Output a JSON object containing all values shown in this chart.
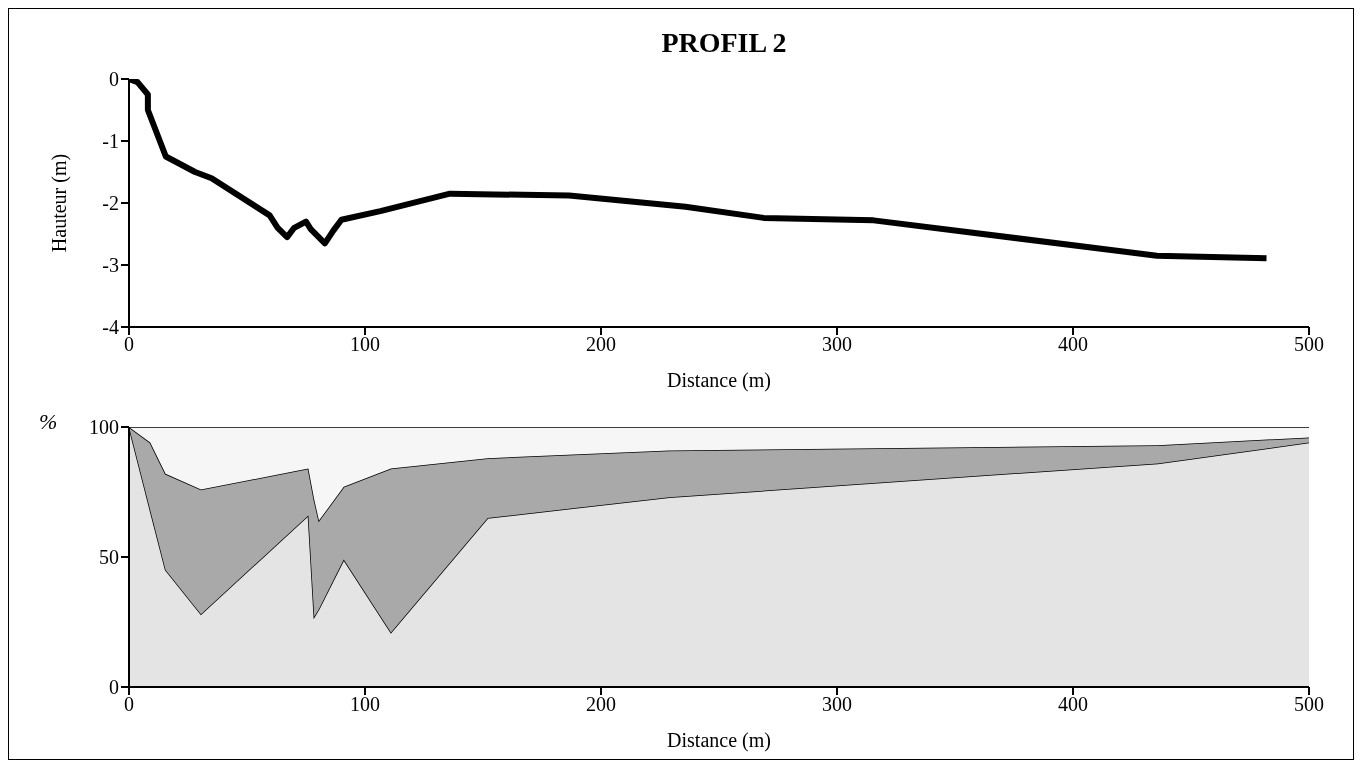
{
  "chart_data": [
    {
      "type": "line",
      "title": "PROFIL 2",
      "xlabel": "Distance (m)",
      "ylabel": "Hauteur (m)",
      "series": [
        {
          "color": "#000000",
          "x": [
            0,
            3.6,
            8,
            8,
            15.6,
            28,
            35,
            59.6,
            63,
            67,
            70,
            75,
            77,
            83,
            86.5,
            90,
            106.5,
            136,
            186.5,
            235.8,
            268.9,
            315.5,
            435.5,
            482
          ],
          "values": [
            0,
            -0.05,
            -0.25,
            -0.5,
            -1.25,
            -1.5,
            -1.6,
            -2.2,
            -2.4,
            -2.55,
            -2.4,
            -2.3,
            -2.42,
            -2.65,
            -2.45,
            -2.27,
            -2.13,
            -1.85,
            -1.88,
            -2.06,
            -2.24,
            -2.28,
            -2.85,
            -2.89
          ]
        }
      ],
      "xlim": [
        0,
        500
      ],
      "xticks": [
        0,
        100,
        200,
        300,
        400,
        500
      ],
      "ylim": [
        -4,
        0
      ],
      "yticks": [
        -4,
        -3,
        -2,
        -1,
        0
      ],
      "grid": false,
      "legend": false,
      "marker": "none",
      "line_style": "solid"
    },
    {
      "type": "area",
      "stacked": true,
      "xlabel": "Distance (m)",
      "ylabel": "%",
      "x": [
        0,
        9,
        15.5,
        30.5,
        76,
        78.5,
        80.5,
        91,
        111,
        152,
        229,
        436,
        500
      ],
      "series": [
        {
          "color": "#e4e4e4",
          "values": [
            100,
            68,
            45,
            28,
            66,
            27,
            30,
            49,
            21,
            65,
            73,
            86,
            94
          ]
        },
        {
          "color": "#a9a9a9",
          "values": [
            0,
            26,
            37,
            48,
            18,
            45,
            34,
            28,
            63,
            23,
            18,
            7,
            2
          ]
        },
        {
          "color": "#f6f6f6",
          "values": [
            0,
            6,
            18,
            24,
            16,
            28,
            36,
            23,
            16,
            12,
            9,
            7,
            4
          ]
        }
      ],
      "xlim": [
        0,
        500
      ],
      "xticks": [
        0,
        100,
        200,
        300,
        400,
        500
      ],
      "ylim": [
        0,
        100
      ],
      "yticks": [
        0,
        50,
        100
      ],
      "grid": false,
      "legend": false
    }
  ]
}
